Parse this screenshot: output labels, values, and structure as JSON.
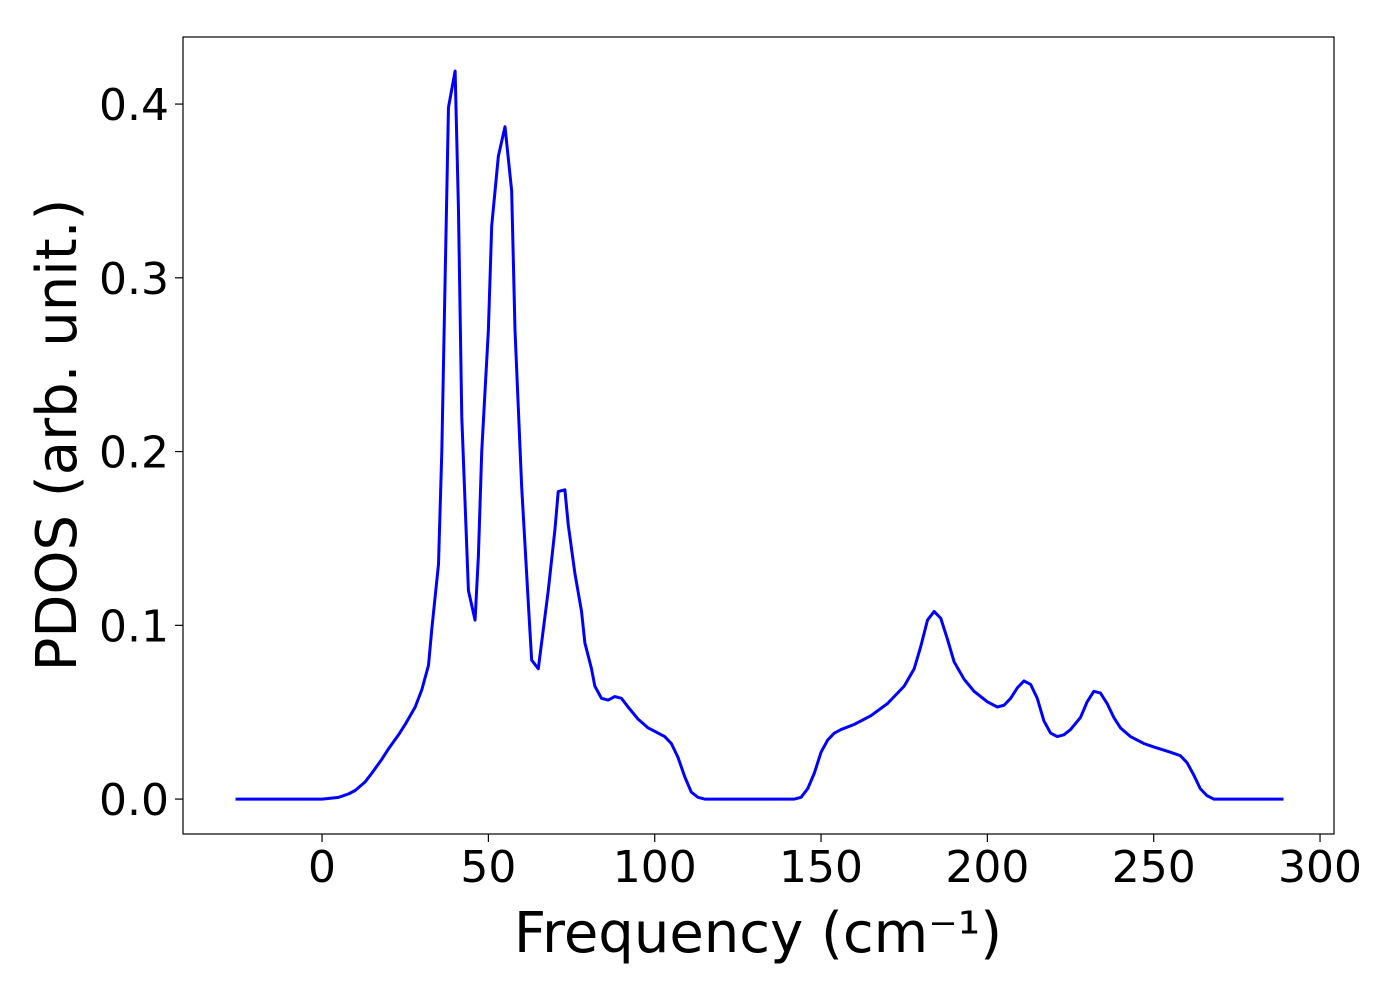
{
  "chart_data": {
    "type": "line",
    "xlabel": "Frequency (cm⁻¹)",
    "ylabel": "PDOS (arb. unit.)",
    "xlim": [
      -41.8,
      304.2
    ],
    "ylim": [
      -0.0201,
      0.4386
    ],
    "xticks": [
      0,
      50,
      100,
      150,
      200,
      250,
      300
    ],
    "yticks": [
      {
        "value": 0,
        "label": "0.0"
      },
      0.1,
      0.2,
      0.3,
      0.4
    ],
    "series": [
      {
        "color": "#0000ff",
        "x": [
          -26,
          -20,
          -10,
          0,
          5,
          8,
          10,
          13,
          15,
          18,
          20,
          23,
          25,
          28,
          30,
          32,
          33,
          35,
          36,
          37,
          38,
          40,
          41,
          42,
          44,
          46,
          47,
          48,
          50,
          51,
          53,
          55,
          57,
          58,
          60,
          62,
          63,
          65,
          66,
          68,
          70,
          71,
          73,
          74,
          76,
          78,
          79,
          81,
          82,
          84,
          86,
          88,
          90,
          92,
          95,
          98,
          100,
          103,
          105,
          107,
          109,
          111,
          113,
          115,
          125,
          135,
          142,
          144,
          146,
          148,
          150,
          152,
          154,
          156,
          160,
          165,
          170,
          175,
          178,
          180,
          182,
          184,
          186,
          188,
          190,
          193,
          196,
          200,
          203,
          205,
          207,
          209,
          211,
          213,
          215,
          217,
          219,
          221,
          223,
          225,
          228,
          230,
          232,
          234,
          236,
          238,
          240,
          243,
          247,
          250,
          255,
          258,
          260,
          262,
          264,
          266,
          268,
          280,
          289
        ],
        "values": [
          0,
          0,
          0,
          0,
          0.001,
          0.003,
          0.005,
          0.01,
          0.015,
          0.023,
          0.029,
          0.037,
          0.043,
          0.053,
          0.063,
          0.077,
          0.098,
          0.135,
          0.2,
          0.3,
          0.398,
          0.419,
          0.34,
          0.22,
          0.12,
          0.103,
          0.14,
          0.2,
          0.27,
          0.33,
          0.37,
          0.387,
          0.35,
          0.27,
          0.18,
          0.113,
          0.08,
          0.075,
          0.09,
          0.12,
          0.155,
          0.177,
          0.178,
          0.158,
          0.13,
          0.108,
          0.09,
          0.075,
          0.065,
          0.058,
          0.057,
          0.059,
          0.058,
          0.053,
          0.046,
          0.041,
          0.039,
          0.036,
          0.032,
          0.024,
          0.013,
          0.004,
          0.001,
          0,
          0,
          0,
          0,
          0.001,
          0.006,
          0.015,
          0.027,
          0.034,
          0.038,
          0.04,
          0.043,
          0.048,
          0.055,
          0.065,
          0.075,
          0.088,
          0.103,
          0.108,
          0.104,
          0.092,
          0.079,
          0.069,
          0.062,
          0.056,
          0.053,
          0.054,
          0.058,
          0.064,
          0.068,
          0.066,
          0.058,
          0.045,
          0.038,
          0.036,
          0.037,
          0.04,
          0.047,
          0.056,
          0.062,
          0.061,
          0.055,
          0.047,
          0.041,
          0.036,
          0.032,
          0.03,
          0.027,
          0.025,
          0.021,
          0.014,
          0.006,
          0.002,
          0,
          0,
          0
        ]
      }
    ]
  }
}
